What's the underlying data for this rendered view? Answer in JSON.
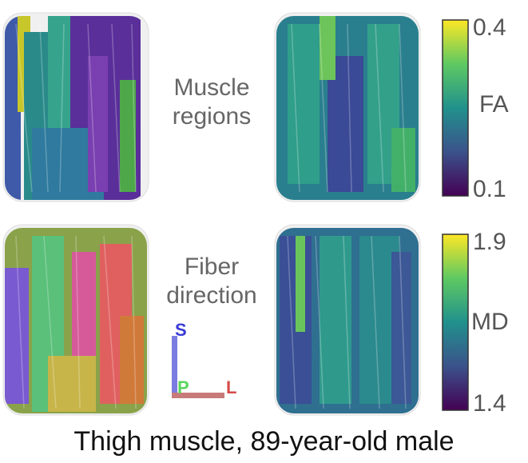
{
  "labels": {
    "top_middle": [
      "Muscle",
      "regions"
    ],
    "bottom_middle": [
      "Fiber",
      "direction"
    ]
  },
  "colorbars": [
    {
      "name": "FA",
      "max": "0.4",
      "min": "0.1"
    },
    {
      "name": "MD",
      "max": "1.9",
      "min": "1.4"
    }
  ],
  "orientation": {
    "superior": "S",
    "posterior": "P",
    "left": "L",
    "colors": {
      "S": "#3b3bd6",
      "P": "#5bd65b",
      "L": "#d64a4a"
    }
  },
  "caption": "Thigh muscle, 89-year-old male",
  "colormap": [
    "#440154",
    "#3b528b",
    "#21918c",
    "#5ec962",
    "#fde725"
  ]
}
